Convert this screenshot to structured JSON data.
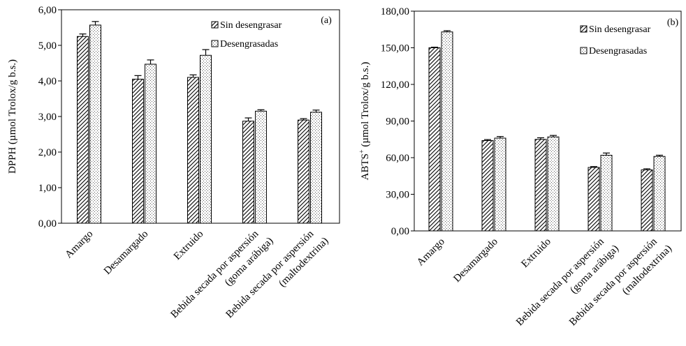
{
  "chart_data": [
    {
      "type": "bar",
      "panel_label": "(a)",
      "title": "",
      "xlabel": "",
      "ylabel": "DPPH  (µmol Trolox/g b.s.)",
      "ylim": [
        0,
        6
      ],
      "yticks": [
        "0,00",
        "1,00",
        "2,00",
        "3,00",
        "4,00",
        "5,00",
        "6,00"
      ],
      "categories": [
        [
          "Amargo"
        ],
        [
          "Desamargado"
        ],
        [
          "Extruido"
        ],
        [
          "Bebida secada por aspersión",
          "(goma arábiga)"
        ],
        [
          "Bebida secada por aspersión",
          "(maltodextrina)"
        ]
      ],
      "series": [
        {
          "name": "Sin desengrasar",
          "values": [
            5.25,
            4.05,
            4.1,
            2.87,
            2.9
          ],
          "errors": [
            0.07,
            0.1,
            0.07,
            0.09,
            0.04
          ]
        },
        {
          "name": "Desengrasadas",
          "values": [
            5.57,
            4.47,
            4.72,
            3.15,
            3.12
          ],
          "errors": [
            0.1,
            0.12,
            0.16,
            0.04,
            0.06
          ]
        }
      ],
      "grid": false,
      "legend_position": "top-right"
    },
    {
      "type": "bar",
      "panel_label": "(b)",
      "title": "",
      "xlabel": "",
      "ylabel_main": "ABTS",
      "ylabel_sup": "+",
      "ylabel_rest": " (µmol Trolox/g b.s.)",
      "ylim": [
        0,
        180
      ],
      "yticks": [
        "0,00",
        "30,00",
        "60,00",
        "90,00",
        "120,00",
        "150,00",
        "180,00"
      ],
      "categories": [
        [
          "Amargo"
        ],
        [
          "Desamargado"
        ],
        [
          "Extruido"
        ],
        [
          "Bebida secada por aspersión",
          "(goma arábiga)"
        ],
        [
          "Bebida secada por aspersión",
          "(maltodextrina)"
        ]
      ],
      "series": [
        {
          "name": "Sin desengrasar",
          "values": [
            150,
            74,
            75,
            52,
            50
          ],
          "errors": [
            0.5,
            0.8,
            1.3,
            0.7,
            0.9
          ]
        },
        {
          "name": "Desengrasadas",
          "values": [
            163,
            76,
            77,
            62,
            61
          ],
          "errors": [
            1.0,
            1.3,
            1.2,
            1.8,
            1.0
          ]
        }
      ],
      "grid": false,
      "legend_position": "top-right"
    }
  ]
}
